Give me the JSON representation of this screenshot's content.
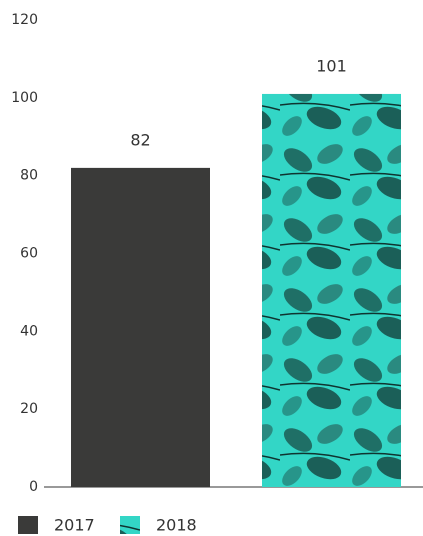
{
  "chart_data": {
    "type": "bar",
    "categories": [
      null
    ],
    "series": [
      {
        "name": "2017",
        "color": "#3a3a39",
        "values": [
          82
        ]
      },
      {
        "name": "2018",
        "color": "#2fd3c3",
        "values": [
          101
        ]
      }
    ],
    "ylim": [
      0,
      120
    ],
    "yticks": [
      0,
      20,
      40,
      60,
      80,
      100,
      120
    ],
    "grid": false,
    "legend": "bottom-left"
  }
}
